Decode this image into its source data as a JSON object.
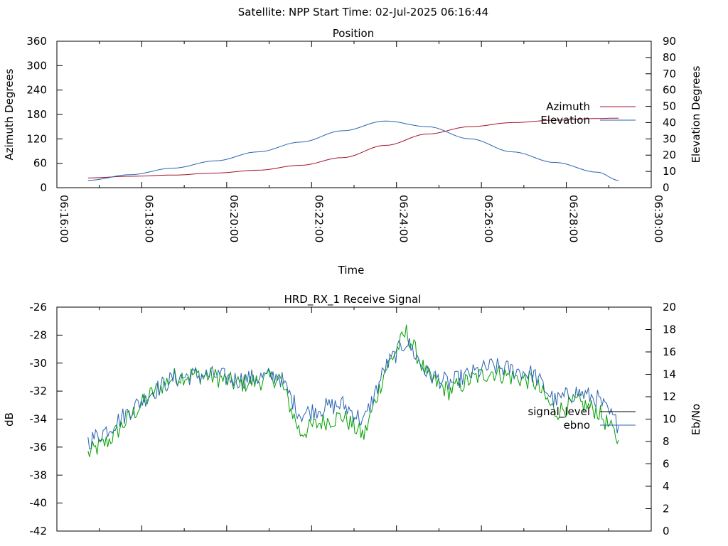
{
  "header": {
    "title": "Satellite: NPP    Start Time: 02-Jul-2025 06:16:44"
  },
  "chart_data": [
    {
      "type": "line",
      "title": "Position",
      "xlabel": "Time",
      "ylabel": "Azimuth Degrees",
      "y2label": "Elevation Degrees",
      "xlim": [
        "06:16:00",
        "06:30:00"
      ],
      "ylim": [
        0,
        360
      ],
      "y2lim": [
        0,
        90
      ],
      "x_ticks": [
        "06:16:00",
        "06:18:00",
        "06:20:00",
        "06:22:00",
        "06:24:00",
        "06:26:00",
        "06:28:00",
        "06:30:00"
      ],
      "y_ticks": [
        "0",
        "60",
        "120",
        "180",
        "240",
        "300",
        "360"
      ],
      "y2_ticks": [
        "0",
        "10",
        "20",
        "30",
        "40",
        "50",
        "60",
        "70",
        "80",
        "90"
      ],
      "legend_position": "right",
      "x": [
        "06:16:44",
        "06:17:44",
        "06:18:44",
        "06:19:44",
        "06:20:44",
        "06:21:44",
        "06:22:44",
        "06:23:44",
        "06:24:44",
        "06:25:44",
        "06:26:44",
        "06:27:44",
        "06:28:44",
        "06:29:14"
      ],
      "series": [
        {
          "name": "Azimuth",
          "axis": "left",
          "color": "#a0142a",
          "values": [
            24,
            28,
            31,
            36,
            43,
            55,
            74,
            104,
            132,
            150,
            160,
            166,
            170,
            171
          ]
        },
        {
          "name": "Elevation",
          "axis": "right",
          "color": "#2a64b0",
          "values": [
            4.5,
            8,
            12,
            16.5,
            22,
            28,
            35,
            41,
            37.5,
            30,
            22,
            15.5,
            9.5,
            4.5
          ]
        }
      ]
    },
    {
      "type": "line",
      "title": "HRD_RX_1 Receive Signal",
      "ylabel": "dB",
      "y2label": "Eb/No",
      "ylim": [
        -42,
        -26
      ],
      "y2lim": [
        0,
        20
      ],
      "y_ticks": [
        "-26",
        "-28",
        "-30",
        "-32",
        "-34",
        "-36",
        "-38",
        "-40",
        "-42"
      ],
      "y2_ticks": [
        "20",
        "18",
        "16",
        "14",
        "12",
        "10",
        "8",
        "6",
        "4",
        "2",
        "0"
      ],
      "legend_position": "right",
      "x": [
        "06:16:44",
        "06:17:14",
        "06:17:44",
        "06:18:14",
        "06:18:44",
        "06:19:14",
        "06:19:44",
        "06:20:14",
        "06:20:44",
        "06:21:14",
        "06:21:44",
        "06:22:14",
        "06:22:44",
        "06:23:14",
        "06:23:44",
        "06:24:14",
        "06:24:44",
        "06:25:14",
        "06:25:44",
        "06:26:14",
        "06:26:44",
        "06:27:14",
        "06:27:44",
        "06:28:14",
        "06:28:44",
        "06:29:14"
      ],
      "series": [
        {
          "name": "signal_level",
          "axis": "left",
          "color": "#00a000",
          "values": [
            -36.5,
            -35.5,
            -33.8,
            -32.2,
            -31.0,
            -30.8,
            -31.0,
            -31.5,
            -31.3,
            -31.0,
            -35.0,
            -34.2,
            -33.8,
            -35.2,
            -30.5,
            -27.8,
            -31.0,
            -32.0,
            -31.2,
            -30.6,
            -31.0,
            -31.3,
            -33.5,
            -32.8,
            -33.4,
            -35.5
          ]
        },
        {
          "name": "ebno",
          "axis": "right",
          "color": "#2a64b0",
          "values": [
            8.0,
            9.2,
            10.8,
            12.4,
            13.6,
            13.9,
            13.9,
            13.5,
            13.7,
            13.9,
            10.4,
            11.0,
            11.3,
            9.8,
            14.6,
            17.0,
            14.0,
            13.2,
            14.0,
            14.7,
            14.4,
            14.0,
            11.6,
            12.4,
            11.8,
            9.4
          ]
        }
      ]
    }
  ]
}
